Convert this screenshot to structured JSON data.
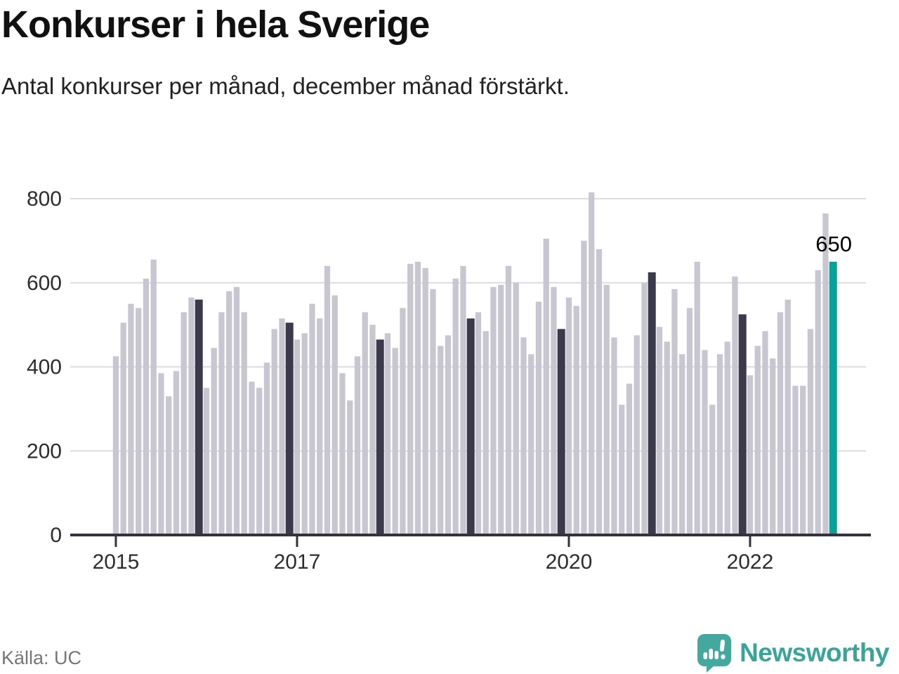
{
  "header": {
    "title": "Konkurser i hela Sverige",
    "subtitle": "Antal konkurser per månad, december månad förstärkt."
  },
  "footer": {
    "source": "Källa: UC",
    "brand": "Newsworthy"
  },
  "chart_data": {
    "type": "bar",
    "title": "Konkurser i hela Sverige",
    "subtitle": "Antal konkurser per månad, december månad förstärkt.",
    "ylabel": "Antal konkurser per månad",
    "xlabel": "",
    "start_month": "2015-01",
    "end_month": "2022-12",
    "values": [
      425,
      505,
      550,
      540,
      610,
      655,
      385,
      330,
      390,
      530,
      565,
      560,
      350,
      445,
      530,
      580,
      590,
      530,
      365,
      350,
      410,
      490,
      515,
      505,
      465,
      480,
      550,
      515,
      640,
      570,
      385,
      320,
      425,
      530,
      500,
      465,
      480,
      445,
      540,
      645,
      650,
      635,
      585,
      450,
      475,
      610,
      640,
      515,
      530,
      485,
      590,
      595,
      640,
      600,
      470,
      430,
      555,
      705,
      590,
      490,
      565,
      545,
      700,
      815,
      680,
      595,
      470,
      310,
      360,
      475,
      600,
      625,
      495,
      460,
      585,
      430,
      540,
      650,
      440,
      310,
      430,
      460,
      615,
      525,
      380,
      450,
      485,
      420,
      530,
      560,
      355,
      355,
      490,
      630,
      765,
      650
    ],
    "december_highlighted": true,
    "latest_annotation": {
      "label": "650",
      "value": 650,
      "month": "2022-12"
    },
    "ylim": [
      0,
      840
    ],
    "yticks": [
      0,
      200,
      400,
      600,
      800
    ],
    "xtick_years": [
      "2015",
      "2017",
      "2020",
      "2022"
    ],
    "grid": true,
    "legend": "none",
    "colors": {
      "bar_default": "#c8c7d1",
      "bar_december": "#3b3a4b",
      "bar_latest": "#00a49b",
      "gridline": "#dcdce0",
      "axis": "#33323d",
      "tick_text": "#2d2d2d",
      "annotation_text": "#000000",
      "brand_teal": "#38a59b"
    }
  }
}
